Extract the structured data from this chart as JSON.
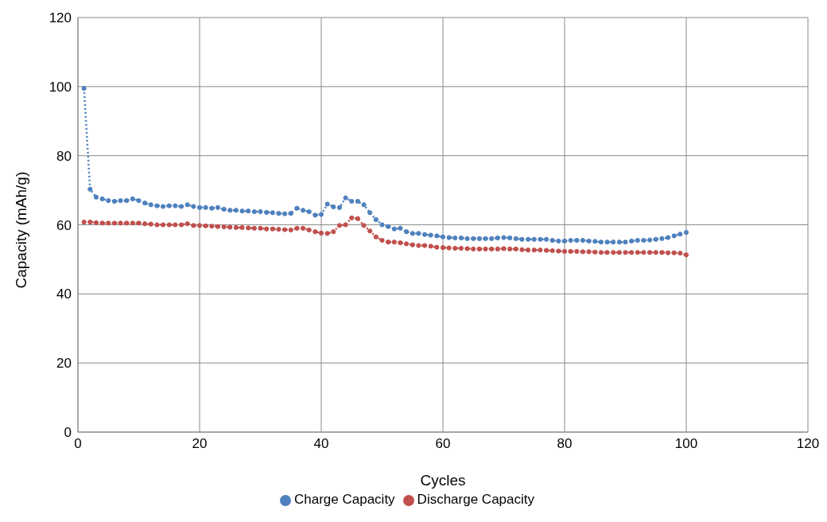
{
  "chart_data": {
    "type": "line",
    "xlabel": "Cycles",
    "ylabel": "Capacity (mAh/g)",
    "x": [
      1,
      2,
      3,
      4,
      5,
      6,
      7,
      8,
      9,
      10,
      11,
      12,
      13,
      14,
      15,
      16,
      17,
      18,
      19,
      20,
      21,
      22,
      23,
      24,
      25,
      26,
      27,
      28,
      29,
      30,
      31,
      32,
      33,
      34,
      35,
      36,
      37,
      38,
      39,
      40,
      41,
      42,
      43,
      44,
      45,
      46,
      47,
      48,
      49,
      50,
      51,
      52,
      53,
      54,
      55,
      56,
      57,
      58,
      59,
      60,
      61,
      62,
      63,
      64,
      65,
      66,
      67,
      68,
      69,
      70,
      71,
      72,
      73,
      74,
      75,
      76,
      77,
      78,
      79,
      80,
      81,
      82,
      83,
      84,
      85,
      86,
      87,
      88,
      89,
      90,
      91,
      92,
      93,
      94,
      95,
      96,
      97,
      98,
      99,
      100
    ],
    "series": [
      {
        "name": "Charge Capacity",
        "color": "#4f81bd",
        "values": [
          99.5,
          70.3,
          68,
          67.5,
          67,
          66.8,
          67,
          67,
          67.5,
          67,
          66.3,
          65.8,
          65.5,
          65.3,
          65.5,
          65.5,
          65.3,
          65.8,
          65.3,
          65,
          65,
          64.8,
          65,
          64.5,
          64.2,
          64.2,
          64,
          64,
          63.8,
          63.8,
          63.6,
          63.5,
          63.3,
          63.2,
          63.3,
          64.8,
          64.2,
          63.8,
          62.8,
          63,
          66,
          65.2,
          65,
          67.8,
          66.8,
          66.8,
          65.8,
          63.5,
          61.5,
          60,
          59.5,
          58.8,
          59,
          58,
          57.5,
          57.5,
          57.2,
          57,
          56.8,
          56.5,
          56.3,
          56.2,
          56.2,
          56,
          56,
          56,
          56,
          56,
          56.2,
          56.3,
          56.2,
          56,
          55.8,
          55.8,
          55.8,
          55.8,
          55.8,
          55.5,
          55.3,
          55.3,
          55.5,
          55.5,
          55.5,
          55.3,
          55.2,
          55,
          55,
          55,
          55,
          55,
          55.3,
          55.5,
          55.5,
          55.6,
          55.8,
          56,
          56.3,
          56.8,
          57.3,
          57.8
        ]
      },
      {
        "name": "Discharge Capacity",
        "color": "#c0504d",
        "values": [
          60.8,
          60.8,
          60.6,
          60.5,
          60.5,
          60.5,
          60.5,
          60.5,
          60.5,
          60.5,
          60.3,
          60.2,
          60,
          60,
          60,
          60,
          60,
          60.3,
          59.8,
          59.8,
          59.7,
          59.6,
          59.5,
          59.4,
          59.3,
          59.2,
          59.2,
          59.1,
          59,
          59,
          58.8,
          58.8,
          58.7,
          58.6,
          58.5,
          59,
          59,
          58.5,
          58,
          57.6,
          57.5,
          58,
          59.8,
          60,
          62,
          61.8,
          59.8,
          58.2,
          56.5,
          55.5,
          55,
          55,
          54.8,
          54.5,
          54.2,
          54,
          54,
          53.8,
          53.5,
          53.4,
          53.3,
          53.2,
          53.2,
          53.1,
          53,
          53,
          53,
          53,
          53,
          53.1,
          53,
          53,
          52.8,
          52.7,
          52.7,
          52.7,
          52.6,
          52.5,
          52.4,
          52.3,
          52.3,
          52.3,
          52.2,
          52.2,
          52.1,
          52,
          52,
          52,
          52,
          52,
          52,
          52,
          52,
          52,
          52,
          52,
          51.9,
          51.9,
          51.8,
          51.3
        ]
      }
    ],
    "xlim": [
      0,
      120
    ],
    "xticks": [
      0,
      20,
      40,
      60,
      80,
      100,
      120
    ],
    "ylim": [
      0,
      120
    ],
    "yticks": [
      0,
      20,
      40,
      60,
      80,
      100,
      120
    ],
    "grid": true,
    "legend": "bottom",
    "marker": "circle",
    "line_style": "dotted"
  }
}
